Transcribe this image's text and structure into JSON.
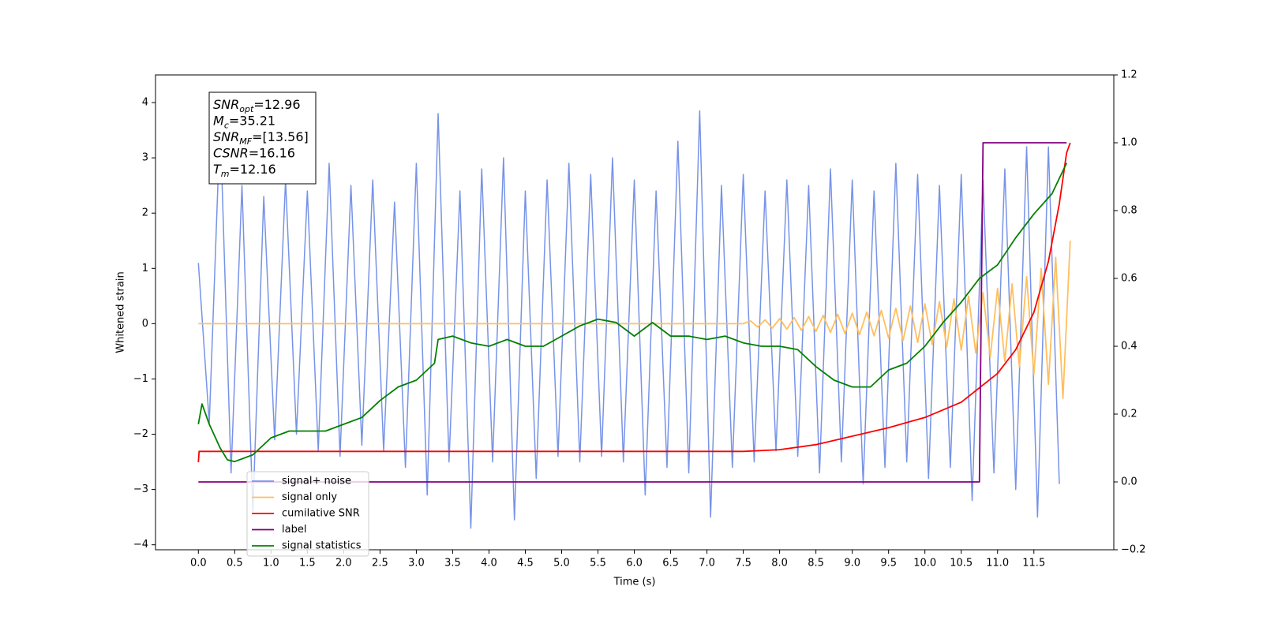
{
  "chart_data": {
    "type": "line",
    "xlabel": "Time (s)",
    "ylabel": "Whitened strain",
    "xlim": [
      -0.59,
      12.6
    ],
    "ylim": [
      -4.09,
      4.5
    ],
    "y2lim": [
      -0.2,
      1.2
    ],
    "xticks": [
      {
        "value": 0,
        "label": "0.0"
      },
      0.5,
      {
        "value": 1,
        "label": "1.0"
      },
      1.5,
      {
        "value": 2,
        "label": "2.0"
      },
      2.5,
      {
        "value": 3,
        "label": "3.0"
      },
      3.5,
      {
        "value": 4,
        "label": "4.0"
      },
      4.5,
      {
        "value": 5,
        "label": "5.0"
      },
      5.5,
      {
        "value": 6,
        "label": "6.0"
      },
      6.5,
      {
        "value": 7,
        "label": "7.0"
      },
      7.5,
      {
        "value": 8,
        "label": "8.0"
      },
      8.5,
      {
        "value": 9,
        "label": "9.0"
      },
      9.5,
      {
        "value": 10,
        "label": "10.0"
      },
      10.5,
      {
        "value": 11,
        "label": "11.0"
      },
      11.5
    ],
    "yticks": [
      {
        "value": -4,
        "label": "−4"
      },
      {
        "value": -3,
        "label": "−3"
      },
      {
        "value": -2,
        "label": "−2"
      },
      {
        "value": -1,
        "label": "−1"
      },
      0,
      1,
      2,
      3,
      4
    ],
    "y2ticks": [
      {
        "value": -0.2,
        "label": "−0.2"
      },
      {
        "value": 0,
        "label": "0.0"
      },
      0.2,
      0.4,
      0.6,
      0.8,
      {
        "value": 1,
        "label": "1.0"
      },
      1.2
    ],
    "legend": "lower left",
    "annotation": [
      {
        "symbol": "SNR",
        "subscript": "opt",
        "text": "=12.96"
      },
      {
        "symbol": "M",
        "subscript": "c",
        "text": "=35.21"
      },
      {
        "symbol": "SNR",
        "subscript": "MF",
        "text": "=[13.56]"
      },
      {
        "symbol": "CSNR",
        "text": "=16.16"
      },
      {
        "symbol": "T",
        "subscript": "m",
        "text": "=12.16"
      }
    ],
    "series": [
      {
        "name": "signal+ noise",
        "color": "#7793e8",
        "axis": "y",
        "x": [
          0,
          0.15,
          0.3,
          0.45,
          0.6,
          0.75,
          0.9,
          1.05,
          1.2,
          1.35,
          1.5,
          1.65,
          1.8,
          1.95,
          2.1,
          2.25,
          2.4,
          2.55,
          2.7,
          2.85,
          3,
          3.15,
          3.3,
          3.45,
          3.6,
          3.75,
          3.9,
          4.05,
          4.2,
          4.35,
          4.5,
          4.65,
          4.8,
          4.95,
          5.1,
          5.25,
          5.4,
          5.55,
          5.7,
          5.85,
          6,
          6.15,
          6.3,
          6.45,
          6.6,
          6.75,
          6.9,
          7.05,
          7.2,
          7.35,
          7.5,
          7.65,
          7.8,
          7.95,
          8.1,
          8.25,
          8.4,
          8.55,
          8.7,
          8.85,
          9,
          9.15,
          9.3,
          9.45,
          9.6,
          9.75,
          9.9,
          10.05,
          10.2,
          10.35,
          10.5,
          10.65,
          10.8,
          10.95,
          11.1,
          11.25,
          11.4,
          11.55,
          11.7,
          11.85
        ],
        "values": [
          1.1,
          -1.8,
          3.65,
          -2.7,
          2.5,
          -3.4,
          2.3,
          -2.1,
          2.6,
          -2.0,
          2.4,
          -2.3,
          2.9,
          -2.4,
          2.5,
          -2.2,
          2.6,
          -2.3,
          2.2,
          -2.6,
          2.9,
          -3.1,
          3.8,
          -2.5,
          2.4,
          -3.7,
          2.8,
          -2.5,
          3.0,
          -3.55,
          2.4,
          -2.8,
          2.6,
          -2.4,
          2.9,
          -2.5,
          2.7,
          -2.4,
          3.0,
          -2.5,
          2.6,
          -3.1,
          2.4,
          -2.6,
          3.3,
          -2.7,
          3.85,
          -3.5,
          2.5,
          -2.6,
          2.7,
          -2.5,
          2.4,
          -2.3,
          2.6,
          -2.4,
          2.5,
          -2.7,
          2.8,
          -2.5,
          2.6,
          -2.9,
          2.4,
          -2.6,
          2.9,
          -2.5,
          2.7,
          -2.8,
          2.5,
          -2.6,
          2.7,
          -3.2,
          2.6,
          -2.7,
          2.8,
          -3.0,
          3.2,
          -3.5,
          3.2,
          -2.9
        ]
      },
      {
        "name": "signal only",
        "color": "#ffbf5f",
        "axis": "y",
        "x": [
          0,
          7.5,
          7.6,
          7.7,
          7.8,
          7.9,
          8,
          8.1,
          8.2,
          8.3,
          8.4,
          8.5,
          8.6,
          8.7,
          8.8,
          8.9,
          9,
          9.1,
          9.2,
          9.3,
          9.4,
          9.5,
          9.6,
          9.7,
          9.8,
          9.9,
          10,
          10.1,
          10.2,
          10.3,
          10.4,
          10.5,
          10.6,
          10.7,
          10.8,
          10.9,
          11,
          11.1,
          11.2,
          11.3,
          11.4,
          11.5,
          11.6,
          11.7,
          11.8,
          11.9,
          12
        ],
        "values": [
          0,
          0,
          0.05,
          -0.06,
          0.07,
          -0.08,
          0.09,
          -0.1,
          0.11,
          -0.12,
          0.13,
          -0.14,
          0.15,
          -0.16,
          0.17,
          -0.18,
          0.19,
          -0.2,
          0.21,
          -0.22,
          0.24,
          -0.26,
          0.28,
          -0.3,
          0.32,
          -0.34,
          0.36,
          -0.38,
          0.4,
          -0.42,
          0.45,
          -0.48,
          0.5,
          -0.53,
          0.56,
          -0.6,
          0.64,
          -0.68,
          0.72,
          -0.78,
          0.85,
          -0.92,
          1.0,
          -1.1,
          1.2,
          -1.35,
          1.5
        ]
      },
      {
        "name": "cumilative SNR",
        "color": "#ff0000",
        "axis": "y2",
        "x": [
          0,
          0.01,
          7.5,
          8,
          8.5,
          9,
          9.5,
          10,
          10.5,
          11,
          11.25,
          11.5,
          11.7,
          11.85,
          11.95,
          12
        ],
        "values": [
          0.058,
          0.09,
          0.09,
          0.095,
          0.11,
          0.135,
          0.16,
          0.19,
          0.235,
          0.32,
          0.39,
          0.5,
          0.65,
          0.82,
          0.97,
          1.0
        ]
      },
      {
        "name": "label",
        "color": "#800080",
        "axis": "y2",
        "x": [
          0,
          10.75,
          10.8,
          11.95
        ],
        "values": [
          0,
          0,
          1,
          1
        ]
      },
      {
        "name": "signal statistics",
        "color": "#008000",
        "axis": "y2",
        "x": [
          0,
          0.05,
          0.15,
          0.3,
          0.4,
          0.5,
          0.75,
          1,
          1.25,
          1.5,
          1.75,
          2,
          2.25,
          2.5,
          2.75,
          3,
          3.25,
          3.3,
          3.5,
          3.75,
          4,
          4.25,
          4.5,
          4.75,
          5,
          5.25,
          5.5,
          5.75,
          6,
          6.25,
          6.5,
          6.75,
          7,
          7.25,
          7.5,
          7.75,
          8,
          8.25,
          8.5,
          8.75,
          9,
          9.25,
          9.5,
          9.75,
          10,
          10.25,
          10.5,
          10.75,
          11,
          11.25,
          11.5,
          11.75,
          11.95
        ],
        "values": [
          0.17,
          0.23,
          0.17,
          0.1,
          0.065,
          0.06,
          0.08,
          0.13,
          0.15,
          0.15,
          0.15,
          0.17,
          0.19,
          0.24,
          0.28,
          0.3,
          0.35,
          0.42,
          0.43,
          0.41,
          0.4,
          0.42,
          0.4,
          0.4,
          0.43,
          0.46,
          0.48,
          0.47,
          0.43,
          0.47,
          0.43,
          0.43,
          0.42,
          0.43,
          0.41,
          0.4,
          0.4,
          0.39,
          0.34,
          0.3,
          0.28,
          0.28,
          0.33,
          0.35,
          0.4,
          0.47,
          0.53,
          0.6,
          0.64,
          0.72,
          0.79,
          0.85,
          0.94
        ]
      }
    ]
  }
}
